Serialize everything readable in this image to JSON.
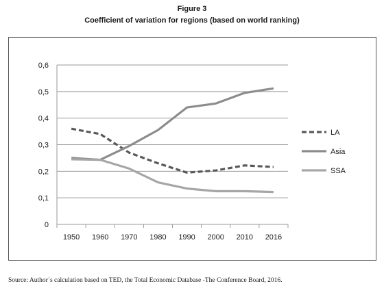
{
  "figure_label": "Figure 3",
  "title": "Coefficient of variation for regions (based on world ranking)",
  "source": "Source: Author´s calculation based on TED, the Total Economic Database -The Conference Board, 2016.",
  "colors": {
    "LA": "#595959",
    "Asia": "#8c8c8c",
    "SSA": "#a6a6a6",
    "grid": "#9a9a9a"
  },
  "chart_data": {
    "type": "line",
    "categories": [
      "1950",
      "1960",
      "1970",
      "1980",
      "1990",
      "2000",
      "2010",
      "2016"
    ],
    "ylim": [
      0,
      0.6
    ],
    "yticks": [
      0,
      0.1,
      0.2,
      0.3,
      0.4,
      0.5,
      0.6
    ],
    "ytick_labels": [
      "0",
      "0,1",
      "0,2",
      "0,3",
      "0,4",
      "0,5",
      "0,6"
    ],
    "grid": true,
    "legend_position": "right",
    "series": [
      {
        "name": "LA",
        "style": "dashed",
        "values": [
          0.36,
          0.34,
          0.27,
          0.23,
          0.195,
          0.203,
          0.222,
          0.216
        ]
      },
      {
        "name": "Asia",
        "style": "solid",
        "values": [
          0.25,
          0.243,
          0.295,
          0.355,
          0.44,
          0.455,
          0.495,
          0.512
        ]
      },
      {
        "name": "SSA",
        "style": "solid",
        "values": [
          0.245,
          0.243,
          0.21,
          0.158,
          0.135,
          0.125,
          0.125,
          0.122
        ]
      }
    ]
  }
}
